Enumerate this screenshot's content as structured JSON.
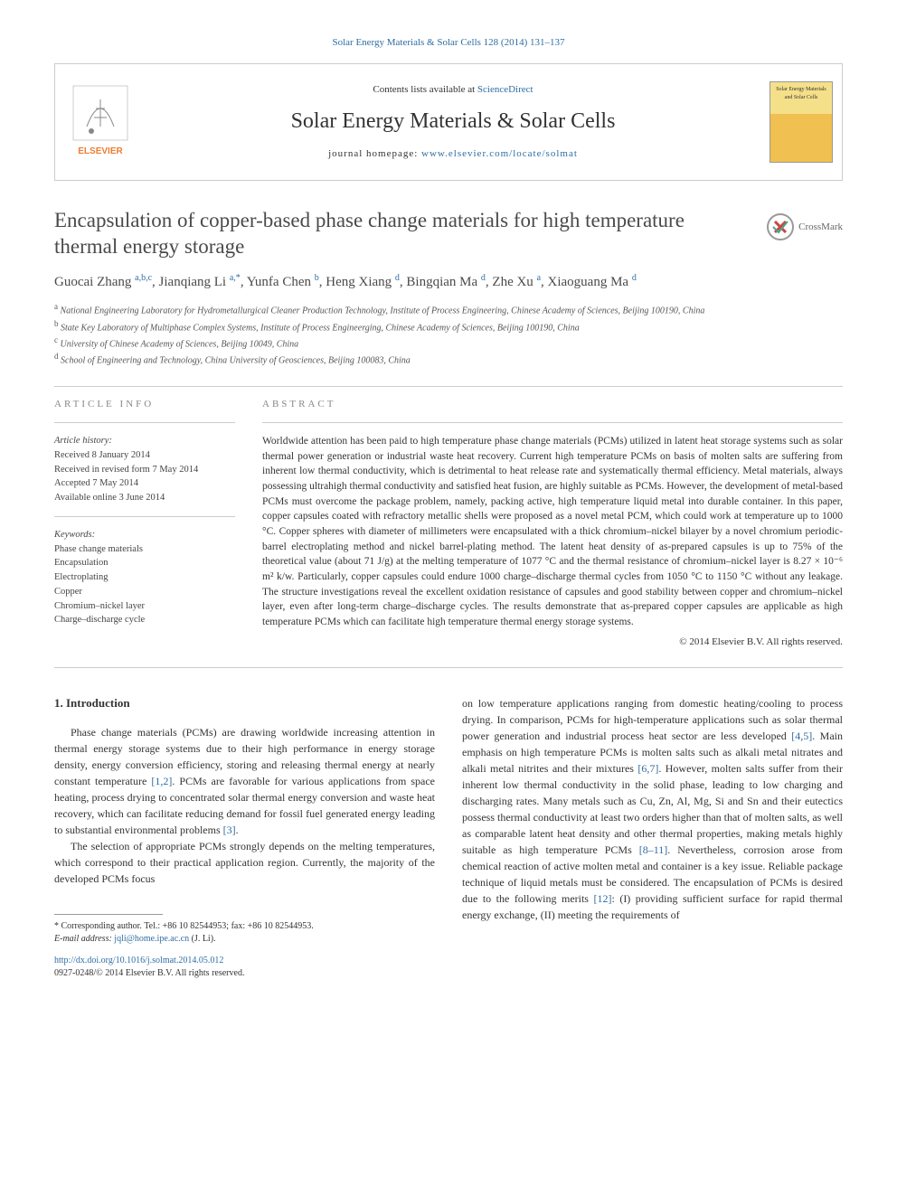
{
  "top_link": "Solar Energy Materials & Solar Cells 128 (2014) 131–137",
  "header": {
    "contents_prefix": "Contents lists available at ",
    "contents_link": "ScienceDirect",
    "journal_title": "Solar Energy Materials & Solar Cells",
    "homepage_prefix": "journal homepage: ",
    "homepage_link": "www.elsevier.com/locate/solmat",
    "cover_text": "Solar Energy Materials and Solar Cells"
  },
  "crossmark_label": "CrossMark",
  "article": {
    "title": "Encapsulation of copper-based phase change materials for high temperature thermal energy storage",
    "authors_html": "Guocai Zhang <sup>a,b,c</sup>, Jianqiang Li <sup>a,*</sup>, Yunfa Chen <sup>b</sup>, Heng Xiang <sup>d</sup>, Bingqian Ma <sup>d</sup>, Zhe Xu <sup>a</sup>, Xiaoguang Ma <sup>d</sup>",
    "affiliations": {
      "a": "National Engineering Laboratory for Hydrometallurgical Cleaner Production Technology, Institute of Process Engineering, Chinese Academy of Sciences, Beijing 100190, China",
      "b": "State Key Laboratory of Multiphase Complex Systems, Institute of Process Engineerging, Chinese Academy of Sciences, Beijing 100190, China",
      "c": "University of Chinese Academy of Sciences, Beijing 10049, China",
      "d": "School of Engineering and Technology, China University of Geosciences, Beijing 100083, China"
    }
  },
  "info": {
    "label": "ARTICLE INFO",
    "history_label": "Article history:",
    "history": [
      "Received 8 January 2014",
      "Received in revised form 7 May 2014",
      "Accepted 7 May 2014",
      "Available online 3 June 2014"
    ],
    "keywords_label": "Keywords:",
    "keywords": [
      "Phase change materials",
      "Encapsulation",
      "Electroplating",
      "Copper",
      "Chromium–nickel layer",
      "Charge–discharge cycle"
    ]
  },
  "abstract": {
    "label": "ABSTRACT",
    "text": "Worldwide attention has been paid to high temperature phase change materials (PCMs) utilized in latent heat storage systems such as solar thermal power generation or industrial waste heat recovery. Current high temperature PCMs on basis of molten salts are suffering from inherent low thermal conductivity, which is detrimental to heat release rate and systematically thermal efficiency. Metal materials, always possessing ultrahigh thermal conductivity and satisfied heat fusion, are highly suitable as PCMs. However, the development of metal-based PCMs must overcome the package problem, namely, packing active, high temperature liquid metal into durable container. In this paper, copper capsules coated with refractory metallic shells were proposed as a novel metal PCM, which could work at temperature up to 1000 °C. Copper spheres with diameter of millimeters were encapsulated with a thick chromium–nickel bilayer by a novel chromium periodic-barrel electroplating method and nickel barrel-plating method. The latent heat density of as-prepared capsules is up to 75% of the theoretical value (about 71 J/g) at the melting temperature of 1077 °C and the thermal resistance of chromium–nickel layer is 8.27 × 10⁻⁶ m² k/w. Particularly, copper capsules could endure 1000 charge–discharge thermal cycles from 1050 °C to 1150 °C without any leakage. The structure investigations reveal the excellent oxidation resistance of capsules and good stability between copper and chromium–nickel layer, even after long-term charge–discharge cycles. The results demonstrate that as-prepared copper capsules are applicable as high temperature PCMs which can facilitate high temperature thermal energy storage systems.",
    "copyright": "© 2014 Elsevier B.V. All rights reserved."
  },
  "body": {
    "section_heading": "1. Introduction",
    "col1_p1": "Phase change materials (PCMs) are drawing worldwide increasing attention in thermal energy storage systems due to their high performance in energy storage density, energy conversion efficiency, storing and releasing thermal energy at nearly constant temperature [1,2]. PCMs are favorable for various applications from space heating, process drying to concentrated solar thermal energy conversion and waste heat recovery, which can facilitate reducing demand for fossil fuel generated energy leading to substantial environmental problems [3].",
    "col1_p2": "The selection of appropriate PCMs strongly depends on the melting temperatures, which correspond to their practical application region. Currently, the majority of the developed PCMs focus",
    "col2_p1": "on low temperature applications ranging from domestic heating/cooling to process drying. In comparison, PCMs for high-temperature applications such as solar thermal power generation and industrial process heat sector are less developed [4,5]. Main emphasis on high temperature PCMs is molten salts such as alkali metal nitrates and alkali metal nitrites and their mixtures [6,7]. However, molten salts suffer from their inherent low thermal conductivity in the solid phase, leading to low charging and discharging rates. Many metals such as Cu, Zn, Al, Mg, Si and Sn and their eutectics possess thermal conductivity at least two orders higher than that of molten salts, as well as comparable latent heat density and other thermal properties, making metals highly suitable as high temperature PCMs [8–11]. Nevertheless, corrosion arose from chemical reaction of active molten metal and container is a key issue. Reliable package technique of liquid metals must be considered. The encapsulation of PCMs is desired due to the following merits [12]: (I) providing sufficient surface for rapid thermal energy exchange, (II) meeting the requirements of",
    "refs": {
      "r12": "[1,2]",
      "r3": "[3]",
      "r45": "[4,5]",
      "r67": "[6,7]",
      "r811": "[8–11]",
      "r12b": "[12]"
    }
  },
  "footnote": {
    "corresp": "* Corresponding author. Tel.: +86 10 82544953; fax: +86 10 82544953.",
    "email_label": "E-mail address: ",
    "email": "jqli@home.ipe.ac.cn",
    "email_suffix": " (J. Li)."
  },
  "doi": {
    "link": "http://dx.doi.org/10.1016/j.solmat.2014.05.012",
    "issn": "0927-0248/© 2014 Elsevier B.V. All rights reserved."
  },
  "colors": {
    "link": "#2e6da4",
    "text": "#333333",
    "border": "#cccccc",
    "elsevier_orange": "#ed7d31"
  }
}
